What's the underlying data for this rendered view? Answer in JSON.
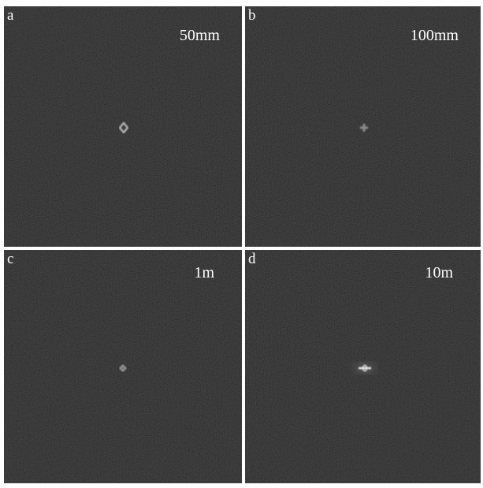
{
  "panels": [
    {
      "letter": "a",
      "label": "50mm"
    },
    {
      "letter": "b",
      "label": "100mm"
    },
    {
      "letter": "c",
      "label": "1m"
    },
    {
      "letter": "d",
      "label": "10m"
    }
  ]
}
